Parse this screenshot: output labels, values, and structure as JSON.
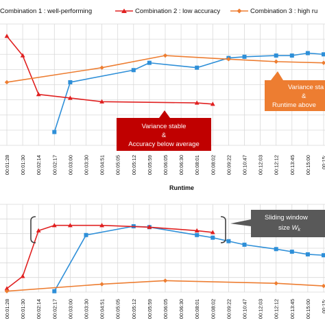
{
  "legend": {
    "entries": [
      {
        "label": "Combination 1 : well-performing",
        "color": "#2e8fd8",
        "marker": "square"
      },
      {
        "label": "Combination 2 : low accuracy",
        "color": "#e02020",
        "marker": "triangle"
      },
      {
        "label": "Combination 3 : high ru",
        "color": "#ed7d31",
        "marker": "diamond"
      }
    ]
  },
  "callouts": {
    "top_red": {
      "line1": "Variance stable",
      "line2": "&",
      "line3": "Accuracy below average",
      "color": "#c00000"
    },
    "top_orange": {
      "line1": "Variance sta",
      "line2": "&",
      "line3": "Runtime above",
      "color": "#ed7d31"
    },
    "bottom_gray": {
      "line1": "Sliding window",
      "line2_prefix": "size ",
      "line2_var": "W",
      "line2_sub": "k",
      "color": "#595959"
    }
  },
  "chart_data": [
    {
      "type": "line",
      "xlabel": "Runtime",
      "categories": [
        "00:01:28",
        "00:01:30",
        "00:02:14",
        "00:02:17",
        "00:03:00",
        "00:03:30",
        "00:04:51",
        "00:05:05",
        "00:05:12",
        "00:05:59",
        "00:06:05",
        "00:06:30",
        "00:08:01",
        "00:08:02",
        "00:09:22",
        "00:10:47",
        "00:12:03",
        "00:12:12",
        "00:13:45",
        "00:15:00",
        "00:15:"
      ],
      "grid": true,
      "series": [
        {
          "key": "c1",
          "color": "#2e8fd8",
          "marker": "square",
          "values": [
            null,
            null,
            null,
            1.1,
            5.2,
            null,
            null,
            null,
            6.2,
            6.8,
            null,
            null,
            6.4,
            null,
            7.2,
            7.3,
            null,
            7.4,
            7.4,
            7.6,
            7.5
          ]
        },
        {
          "key": "c2",
          "color": "#e02020",
          "marker": "triangle",
          "values": [
            9.0,
            7.4,
            4.2,
            null,
            3.9,
            null,
            3.6,
            null,
            null,
            null,
            null,
            null,
            3.5,
            3.4,
            null,
            null,
            null,
            null,
            null,
            null,
            null
          ]
        },
        {
          "key": "c3",
          "color": "#ed7d31",
          "marker": "diamond",
          "values": [
            5.2,
            null,
            null,
            null,
            null,
            null,
            6.4,
            null,
            null,
            null,
            7.4,
            null,
            null,
            null,
            7.1,
            null,
            null,
            6.9,
            null,
            null,
            6.8
          ]
        }
      ]
    },
    {
      "type": "line",
      "xlabel": "",
      "categories": [
        "00:01:28",
        "00:01:30",
        "00:02:14",
        "00:02:17",
        "00:03:00",
        "00:03:30",
        "00:04:51",
        "00:05:05",
        "00:05:12",
        "00:05:59",
        "00:06:05",
        "00:06:30",
        "00:08:01",
        "00:08:02",
        "00:09:22",
        "00:10:47",
        "00:12:03",
        "00:12:12",
        "00:13:45",
        "00:15:00",
        "00:15:"
      ],
      "grid": true,
      "series": [
        {
          "key": "c1",
          "color": "#2e8fd8",
          "marker": "square",
          "values": [
            null,
            null,
            null,
            0.1,
            null,
            6.5,
            null,
            null,
            7.5,
            7.4,
            null,
            null,
            6.5,
            6.2,
            5.8,
            5.4,
            null,
            4.9,
            4.6,
            4.3,
            4.2
          ]
        },
        {
          "key": "c2",
          "color": "#e02020",
          "marker": "triangle",
          "values": [
            0.4,
            1.8,
            7.0,
            7.6,
            7.6,
            null,
            7.6,
            null,
            null,
            7.4,
            null,
            null,
            7.0,
            6.8,
            null,
            null,
            null,
            null,
            null,
            null,
            null
          ]
        },
        {
          "key": "c3",
          "color": "#ed7d31",
          "marker": "diamond",
          "values": [
            0.1,
            null,
            null,
            null,
            null,
            null,
            0.9,
            null,
            null,
            null,
            1.3,
            null,
            null,
            null,
            null,
            null,
            null,
            1.0,
            null,
            null,
            0.7
          ]
        }
      ]
    }
  ]
}
